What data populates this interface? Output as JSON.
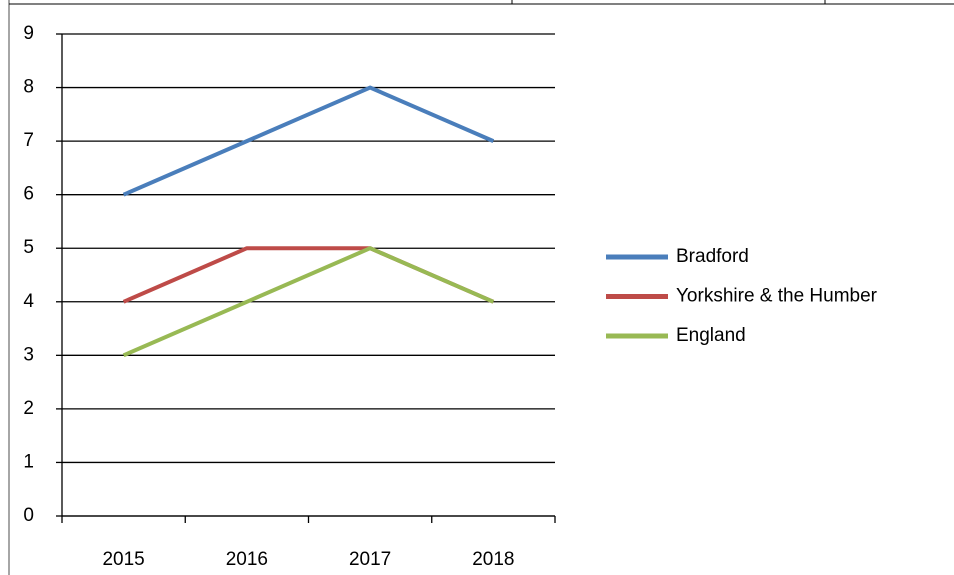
{
  "chart_data": {
    "type": "line",
    "categories": [
      "2015",
      "2016",
      "2017",
      "2018"
    ],
    "series": [
      {
        "name": "Bradford",
        "color": "#4a7ebb",
        "values": [
          6,
          7,
          8,
          7
        ]
      },
      {
        "name": "Yorkshire & the Humber",
        "color": "#be4b48",
        "values": [
          4,
          5,
          5,
          4
        ]
      },
      {
        "name": "England",
        "color": "#98b954",
        "values": [
          3,
          4,
          5,
          4
        ]
      }
    ],
    "ylim": [
      0,
      9
    ],
    "yticks": [
      0,
      1,
      2,
      3,
      4,
      5,
      6,
      7,
      8,
      9
    ],
    "grid": true,
    "legend": "right"
  }
}
